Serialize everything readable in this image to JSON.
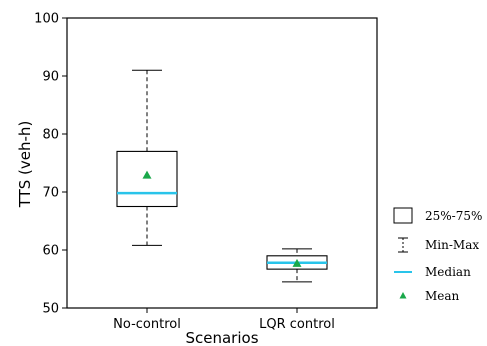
{
  "chart_data": {
    "type": "box",
    "title": "",
    "xlabel": "Scenarios",
    "ylabel": "TTS (veh-h)",
    "ylim": [
      50,
      100
    ],
    "yticks": [
      50,
      60,
      70,
      80,
      90,
      100
    ],
    "grid": false,
    "categories": [
      "No-control",
      "LQR control"
    ],
    "boxes": [
      {
        "category": "No-control",
        "min": 60.8,
        "q1": 67.5,
        "median": 69.8,
        "q3": 77.0,
        "max": 91.0,
        "mean": 72.9
      },
      {
        "category": "LQR control",
        "min": 54.5,
        "q1": 56.7,
        "median": 57.8,
        "q3": 59.0,
        "max": 60.2,
        "mean": 57.7
      }
    ],
    "legend": {
      "position": "right",
      "entries": [
        {
          "label": "25%-75%",
          "symbol": "box"
        },
        {
          "label": "Min-Max",
          "symbol": "whisker"
        },
        {
          "label": "Median",
          "symbol": "line"
        },
        {
          "label": "Mean",
          "symbol": "triangle"
        }
      ]
    },
    "colors": {
      "median": "#29c4ea",
      "mean": "#1aa84a",
      "box": "#000000",
      "whisker": "#000000"
    }
  }
}
